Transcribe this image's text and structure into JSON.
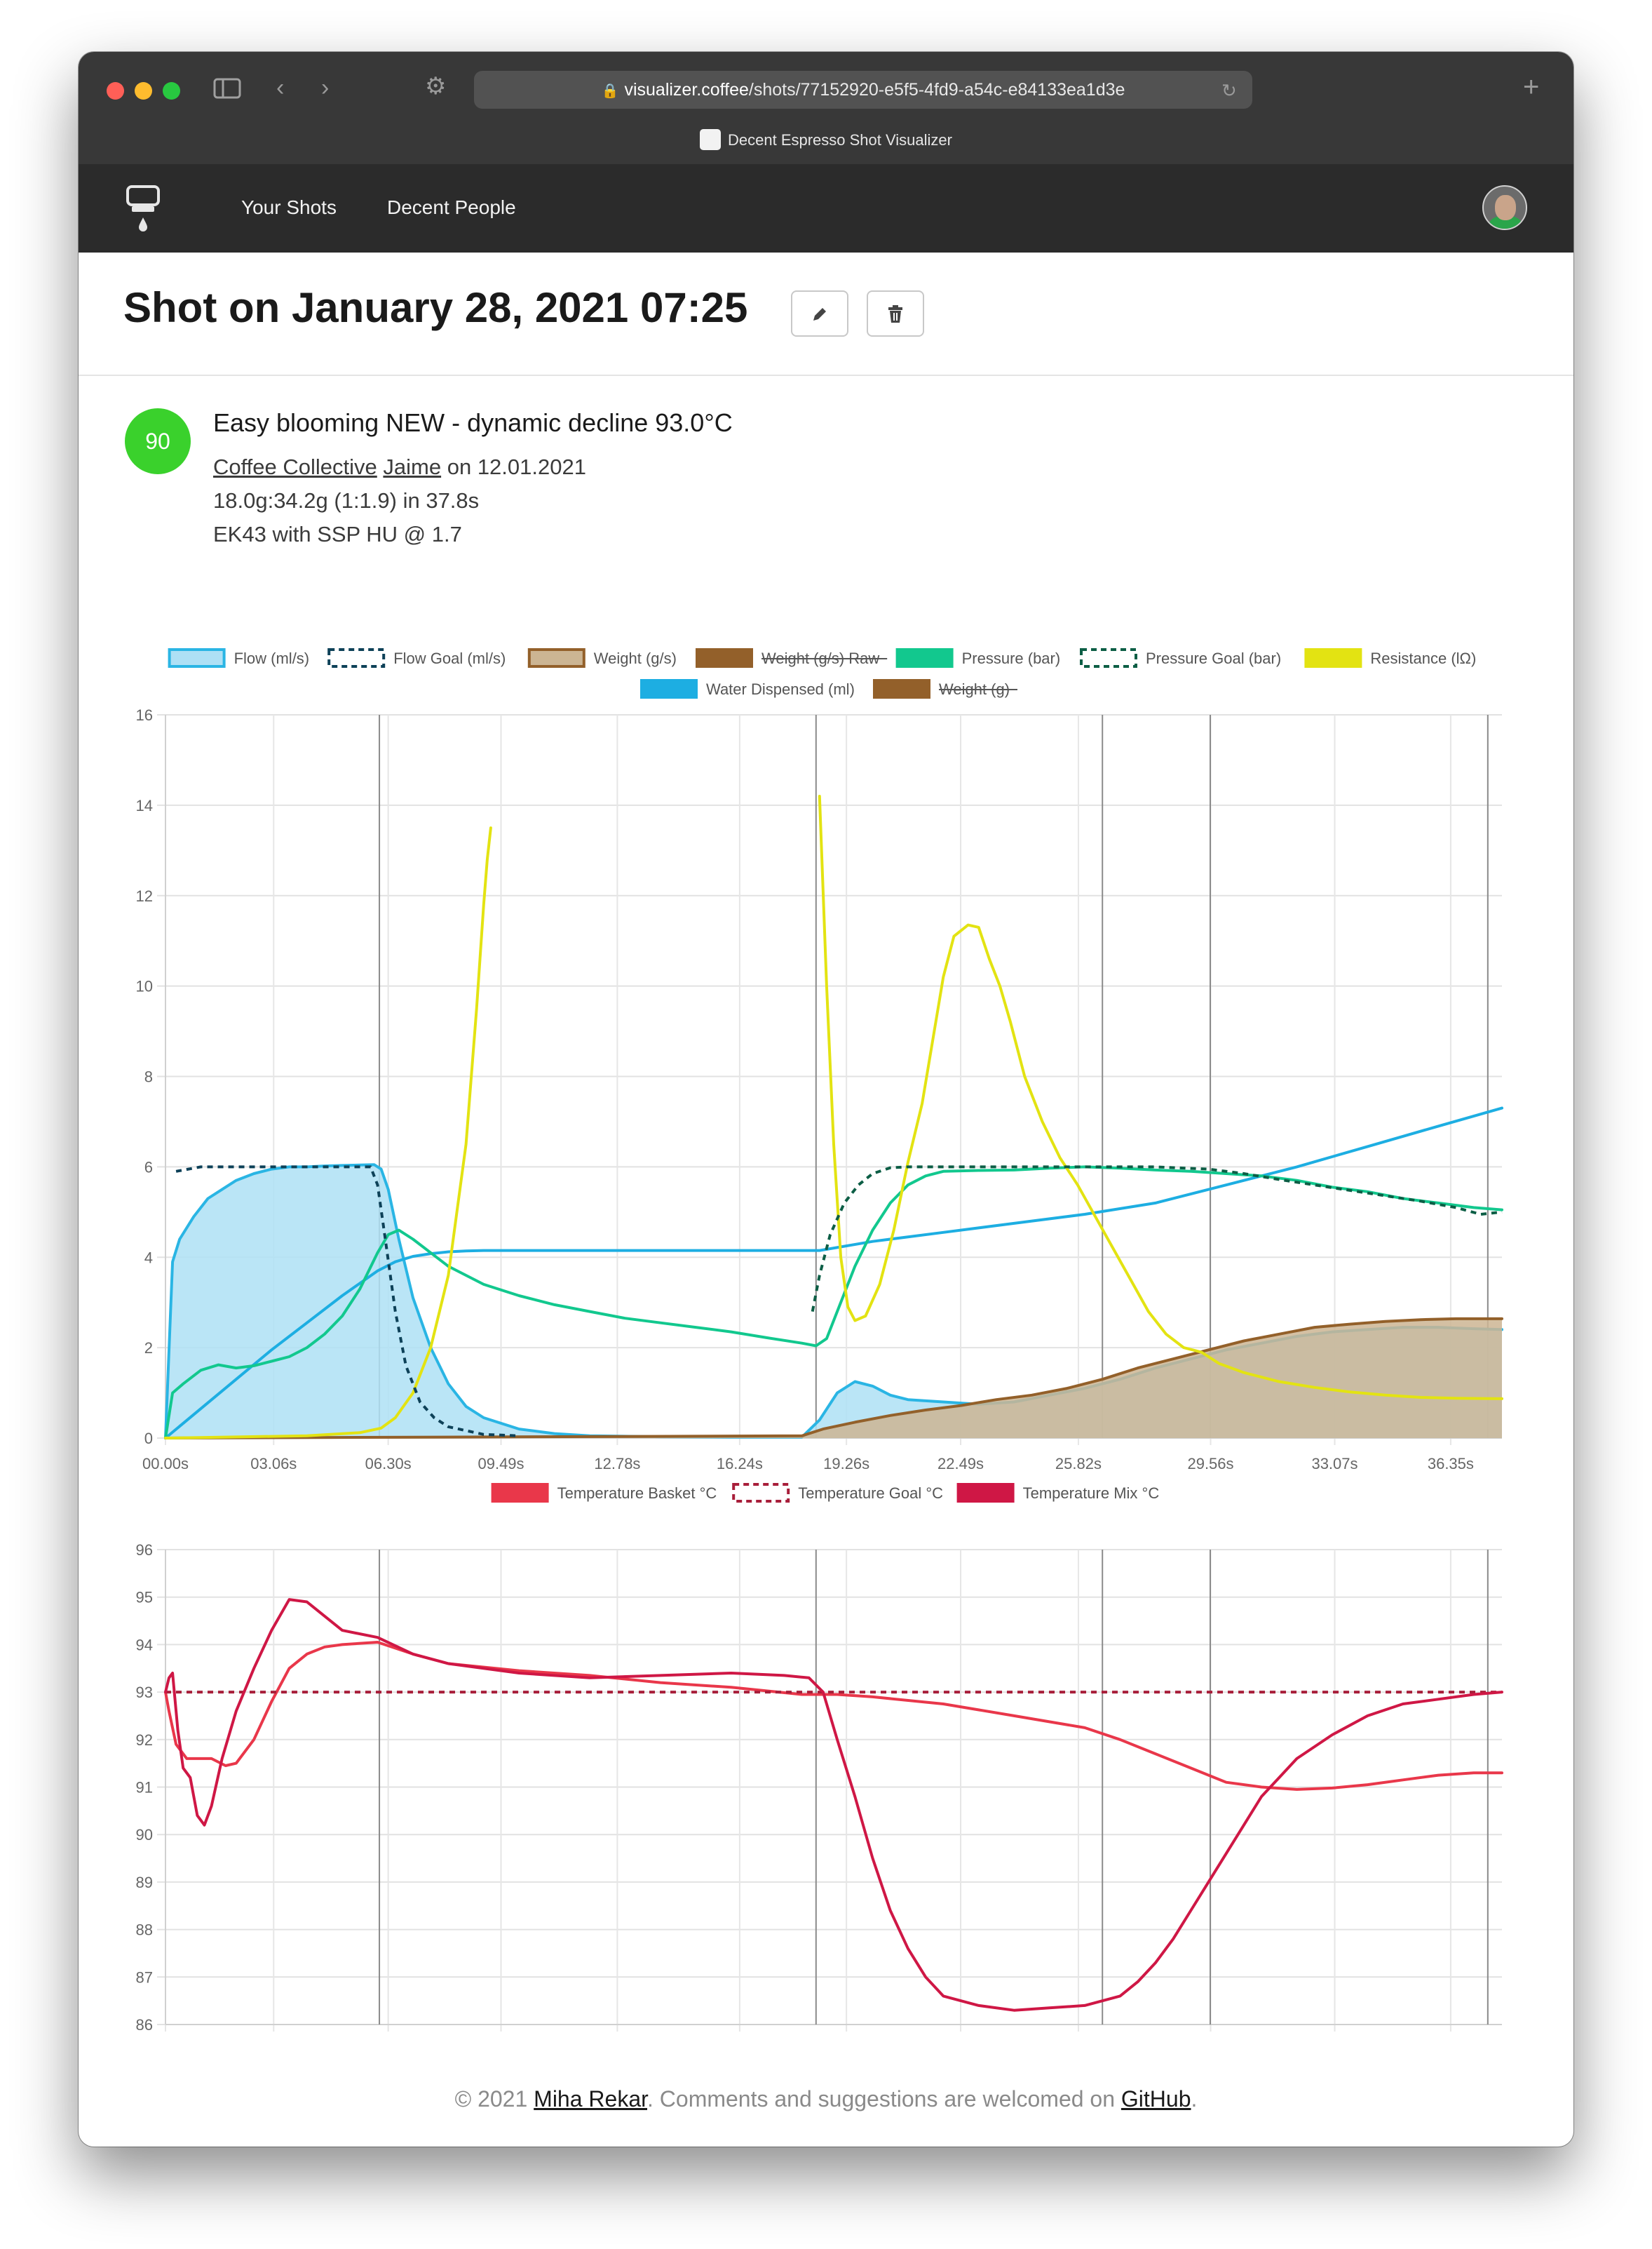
{
  "browser": {
    "url_host": "visualizer.coffee",
    "url_path": "/shots/77152920-e5f5-4fd9-a54c-e84133ea1d3e",
    "tab_title": "Decent Espresso Shot Visualizer"
  },
  "nav": {
    "your_shots": "Your Shots",
    "decent_people": "Decent People"
  },
  "shot": {
    "title": "Shot on January 28, 2021 07:25",
    "score": "90",
    "profile": "Easy blooming NEW - dynamic decline 93.0°C",
    "roaster": "Coffee Collective",
    "bean": "Jaime",
    "roast_date_text": " on 12.01.2021",
    "dose_line": "18.0g:34.2g (1:1.9) in 37.8s",
    "grinder_line": "EK43 with SSP HU @ 1.7"
  },
  "footer": {
    "prefix": "© 2021 ",
    "author": "Miha Rekar",
    "middle": ". Comments and suggestions are welcomed on ",
    "github": "GitHub",
    "suffix": "."
  },
  "chart_data": [
    {
      "type": "line",
      "title": "",
      "xlabel": "",
      "ylabel": "",
      "xlim": [
        0,
        37.8
      ],
      "ylim": [
        0,
        16
      ],
      "yticks": [
        0,
        2,
        4,
        6,
        8,
        10,
        12,
        14,
        16
      ],
      "x_ticks": [
        0,
        3.06,
        6.3,
        9.49,
        12.78,
        16.24,
        19.26,
        22.49,
        25.82,
        29.56,
        33.07,
        36.35
      ],
      "x_tick_labels": [
        "00.00s",
        "03.06s",
        "06.30s",
        "09.49s",
        "12.78s",
        "16.24s",
        "19.26s",
        "22.49s",
        "25.82s",
        "29.56s",
        "33.07s",
        "36.35s"
      ],
      "phase_lines": [
        6.05,
        18.4,
        26.5,
        29.55,
        37.4
      ],
      "grid": true,
      "legend_position": "top",
      "series": [
        {
          "name": "Flow (ml/s)",
          "color": "#2ab5e4",
          "fill": "#aee0f5",
          "style": "area",
          "strikethrough": false,
          "x": [
            0,
            0.2,
            0.4,
            0.8,
            1.2,
            1.6,
            2.0,
            2.5,
            3.0,
            3.5,
            4.0,
            4.5,
            5.0,
            5.5,
            5.9,
            6.1,
            6.3,
            6.6,
            7.0,
            7.5,
            8.0,
            8.5,
            9.0,
            10.0,
            11.0,
            12.0,
            14.0,
            16.0,
            18.0,
            18.5,
            19.0,
            19.5,
            20.0,
            20.5,
            21.0,
            22.0,
            23.0,
            24.0,
            25.0,
            26.0,
            27.0,
            28.0,
            29.0,
            30.0,
            31.0,
            32.0,
            33.0,
            34.0,
            35.0,
            36.0,
            37.0,
            37.8
          ],
          "y": [
            0,
            3.9,
            4.4,
            4.9,
            5.3,
            5.5,
            5.7,
            5.85,
            5.95,
            6.0,
            6.0,
            6.02,
            6.03,
            6.04,
            6.05,
            5.95,
            5.5,
            4.4,
            3.1,
            2.0,
            1.2,
            0.7,
            0.45,
            0.2,
            0.1,
            0.05,
            0.03,
            0.02,
            0.02,
            0.4,
            1.0,
            1.25,
            1.15,
            0.95,
            0.85,
            0.8,
            0.75,
            0.8,
            0.95,
            1.1,
            1.3,
            1.55,
            1.75,
            1.95,
            2.1,
            2.25,
            2.35,
            2.4,
            2.45,
            2.45,
            2.42,
            2.4
          ]
        },
        {
          "name": "Flow Goal (ml/s)",
          "color": "#0d4158",
          "style": "dashed",
          "strikethrough": false,
          "x": [
            0.3,
            1.0,
            2.0,
            3.0,
            4.0,
            5.0,
            5.8,
            6.0,
            6.2,
            6.5,
            6.8,
            7.2,
            7.6,
            8.0,
            9.0,
            10.0
          ],
          "y": [
            5.9,
            6.0,
            6.0,
            6.0,
            6.0,
            6.0,
            6.0,
            5.6,
            4.5,
            2.8,
            1.6,
            0.8,
            0.45,
            0.25,
            0.08,
            0.05
          ]
        },
        {
          "name": "Weight (g/s)",
          "color": "#93602a",
          "fill": "#ccb593",
          "style": "area",
          "strikethrough": false,
          "x": [
            0,
            18.0,
            18.6,
            19.5,
            20.5,
            21.5,
            22.5,
            23.5,
            24.5,
            25.5,
            26.5,
            27.5,
            28.5,
            29.5,
            30.5,
            31.5,
            32.5,
            33.5,
            34.5,
            35.5,
            36.5,
            37.8
          ],
          "y": [
            0,
            0.05,
            0.2,
            0.35,
            0.5,
            0.62,
            0.72,
            0.85,
            0.95,
            1.1,
            1.3,
            1.55,
            1.75,
            1.95,
            2.15,
            2.3,
            2.45,
            2.52,
            2.58,
            2.62,
            2.64,
            2.64
          ]
        },
        {
          "name": "Weight (g/s) Raw",
          "color": "#93602a",
          "style": "solid",
          "strikethrough": true,
          "x": [],
          "y": []
        },
        {
          "name": "Pressure (bar)",
          "color": "#12c88e",
          "style": "solid",
          "strikethrough": false,
          "x": [
            0,
            0.2,
            0.5,
            1.0,
            1.5,
            2.0,
            2.5,
            3.0,
            3.5,
            4.0,
            4.5,
            5.0,
            5.5,
            6.0,
            6.3,
            6.6,
            7.0,
            7.5,
            8.0,
            9.0,
            10.0,
            11.0,
            12.0,
            13.0,
            14.0,
            15.0,
            16.0,
            17.0,
            18.0,
            18.4,
            18.7,
            19.0,
            19.5,
            20.0,
            20.5,
            21.0,
            21.5,
            22.0,
            23.0,
            24.0,
            25.0,
            26.0,
            27.0,
            28.0,
            29.0,
            30.0,
            31.0,
            32.0,
            33.0,
            34.0,
            35.0,
            36.0,
            37.0,
            37.8
          ],
          "y": [
            0,
            1.0,
            1.2,
            1.5,
            1.62,
            1.55,
            1.6,
            1.7,
            1.8,
            2.0,
            2.3,
            2.7,
            3.3,
            4.1,
            4.5,
            4.6,
            4.4,
            4.1,
            3.8,
            3.4,
            3.15,
            2.95,
            2.8,
            2.65,
            2.55,
            2.45,
            2.35,
            2.22,
            2.1,
            2.04,
            2.2,
            2.8,
            3.8,
            4.6,
            5.2,
            5.6,
            5.8,
            5.9,
            5.92,
            5.93,
            5.97,
            6.0,
            5.97,
            5.93,
            5.9,
            5.85,
            5.8,
            5.7,
            5.55,
            5.45,
            5.3,
            5.2,
            5.1,
            5.05
          ]
        },
        {
          "name": "Pressure Goal (bar)",
          "color": "#0c5e45",
          "style": "dashed",
          "strikethrough": false,
          "x": [
            18.3,
            18.5,
            18.8,
            19.2,
            19.6,
            20.0,
            20.5,
            21.0,
            22.0,
            24.0,
            26.0,
            28.0,
            29.5,
            30.5,
            31.5,
            32.5,
            33.5,
            34.5,
            35.5,
            36.5,
            37.2,
            37.8
          ],
          "y": [
            2.8,
            3.6,
            4.5,
            5.2,
            5.6,
            5.85,
            5.98,
            6.0,
            6.0,
            6.0,
            6.0,
            6.0,
            5.95,
            5.85,
            5.72,
            5.6,
            5.48,
            5.36,
            5.24,
            5.1,
            4.95,
            5.0
          ]
        },
        {
          "name": "Resistance (lΩ)",
          "color": "#e3e312",
          "style": "solid",
          "strikethrough": false,
          "x": [
            0,
            4.0,
            5.5,
            6.1,
            6.5,
            7.0,
            7.5,
            8.0,
            8.5,
            8.8,
            9.0,
            9.1,
            9.2
          ],
          "y": [
            0,
            0.05,
            0.12,
            0.22,
            0.45,
            1.0,
            2.0,
            3.6,
            6.5,
            9.5,
            11.8,
            12.8,
            13.5
          ],
          "x2": [
            18.5,
            18.7,
            18.9,
            19.1,
            19.3,
            19.5,
            19.8,
            20.2,
            20.6,
            21.0,
            21.4,
            21.7,
            22.0,
            22.3,
            22.7,
            23.0,
            23.3,
            23.6,
            23.9,
            24.3,
            24.8,
            25.3,
            25.8,
            26.3,
            26.8,
            27.3,
            27.8,
            28.3,
            28.8,
            29.3,
            29.8,
            30.5,
            31.5,
            32.5,
            33.5,
            34.5,
            35.5,
            36.5,
            37.8
          ],
          "y2": [
            14.2,
            10.0,
            6.5,
            4.0,
            2.9,
            2.6,
            2.7,
            3.4,
            4.6,
            6.1,
            7.4,
            8.8,
            10.2,
            11.1,
            11.35,
            11.3,
            10.6,
            10.0,
            9.2,
            8.0,
            7.0,
            6.2,
            5.6,
            4.9,
            4.2,
            3.5,
            2.8,
            2.3,
            2.0,
            1.9,
            1.65,
            1.45,
            1.25,
            1.12,
            1.02,
            0.95,
            0.9,
            0.88,
            0.87
          ]
        },
        {
          "name": "Water Dispensed (ml)",
          "color": "#1daee2",
          "style": "solid",
          "strikethrough": false,
          "x": [
            0,
            1.0,
            2.0,
            3.0,
            4.0,
            5.0,
            6.0,
            6.5,
            7.0,
            7.5,
            8.0,
            8.5,
            9.0,
            10.0,
            12.0,
            14.0,
            16.0,
            18.0,
            18.5,
            20.0,
            22.0,
            24.0,
            26.0,
            28.0,
            30.0,
            32.0,
            34.0,
            36.0,
            37.8
          ],
          "y": [
            0,
            0.65,
            1.3,
            1.95,
            2.55,
            3.15,
            3.7,
            3.9,
            4.02,
            4.08,
            4.12,
            4.14,
            4.15,
            4.15,
            4.15,
            4.15,
            4.15,
            4.15,
            4.15,
            4.35,
            4.55,
            4.75,
            4.95,
            5.2,
            5.6,
            6.0,
            6.45,
            6.9,
            7.3
          ]
        },
        {
          "name": "Weight (g)",
          "color": "#93602a",
          "style": "solid",
          "strikethrough": true,
          "x": [],
          "y": []
        }
      ]
    },
    {
      "type": "line",
      "title": "",
      "xlabel": "",
      "ylabel": "",
      "xlim": [
        0,
        37.8
      ],
      "ylim": [
        86,
        96
      ],
      "yticks": [
        86,
        87,
        88,
        89,
        90,
        91,
        92,
        93,
        94,
        95,
        96
      ],
      "x_ticks": [
        0,
        3.06,
        6.3,
        9.49,
        12.78,
        16.24,
        19.26,
        22.49,
        25.82,
        29.56,
        33.07,
        36.35
      ],
      "x_tick_labels": [
        "00.00s",
        "03.06s",
        "06.30s",
        "09.49s",
        "12.78s",
        "16.24s",
        "19.26s",
        "22.49s",
        "25.82s",
        "29.56s",
        "33.07s",
        "36.35s"
      ],
      "phase_lines": [
        6.05,
        18.4,
        26.5,
        29.55,
        37.4
      ],
      "grid": true,
      "legend_position": "top",
      "series": [
        {
          "name": "Temperature Basket °C",
          "color": "#e9374a",
          "style": "solid",
          "x": [
            0,
            0.1,
            0.3,
            0.6,
            1.0,
            1.3,
            1.7,
            2.0,
            2.5,
            3.0,
            3.5,
            4.0,
            4.5,
            5.0,
            6.0,
            7.0,
            8.0,
            10.0,
            12.0,
            14.0,
            16.0,
            18.0,
            19.0,
            20.0,
            22.0,
            24.0,
            26.0,
            27.0,
            28.0,
            29.0,
            30.0,
            31.0,
            32.0,
            33.0,
            34.0,
            35.0,
            36.0,
            37.0,
            37.8
          ],
          "y": [
            93.0,
            92.6,
            91.9,
            91.6,
            91.6,
            91.6,
            91.45,
            91.5,
            92.0,
            92.8,
            93.5,
            93.8,
            93.95,
            94.0,
            94.05,
            93.8,
            93.6,
            93.45,
            93.35,
            93.2,
            93.1,
            92.95,
            92.95,
            92.9,
            92.75,
            92.5,
            92.25,
            92.0,
            91.7,
            91.4,
            91.1,
            91.0,
            90.95,
            90.98,
            91.05,
            91.15,
            91.25,
            91.3,
            91.3
          ]
        },
        {
          "name": "Temperature Goal °C",
          "color": "#a81e3a",
          "style": "dashed",
          "x": [
            0,
            37.8
          ],
          "y": [
            93.0,
            93.0
          ]
        },
        {
          "name": "Temperature Mix °C",
          "color": "#cf1745",
          "style": "solid",
          "x": [
            0,
            0.1,
            0.2,
            0.35,
            0.5,
            0.7,
            0.9,
            1.1,
            1.3,
            1.6,
            2.0,
            2.5,
            3.0,
            3.5,
            4.0,
            4.5,
            5.0,
            6.0,
            7.0,
            8.0,
            10.0,
            12.0,
            14.0,
            16.0,
            17.5,
            18.2,
            18.6,
            19.0,
            19.5,
            20.0,
            20.5,
            21.0,
            21.5,
            22.0,
            23.0,
            24.0,
            25.0,
            26.0,
            27.0,
            27.5,
            28.0,
            28.5,
            29.0,
            29.5,
            30.0,
            30.5,
            31.0,
            31.5,
            32.0,
            33.0,
            34.0,
            35.0,
            36.0,
            37.0,
            37.8
          ],
          "y": [
            93.0,
            93.3,
            93.4,
            92.2,
            91.4,
            91.2,
            90.4,
            90.2,
            90.6,
            91.6,
            92.6,
            93.5,
            94.3,
            94.95,
            94.9,
            94.6,
            94.3,
            94.15,
            93.8,
            93.6,
            93.4,
            93.3,
            93.35,
            93.4,
            93.35,
            93.3,
            93.0,
            92.0,
            90.8,
            89.5,
            88.4,
            87.6,
            87.0,
            86.6,
            86.4,
            86.3,
            86.35,
            86.4,
            86.6,
            86.9,
            87.3,
            87.8,
            88.4,
            89.0,
            89.6,
            90.2,
            90.8,
            91.2,
            91.6,
            92.1,
            92.5,
            92.75,
            92.85,
            92.95,
            93.0
          ]
        }
      ]
    }
  ]
}
